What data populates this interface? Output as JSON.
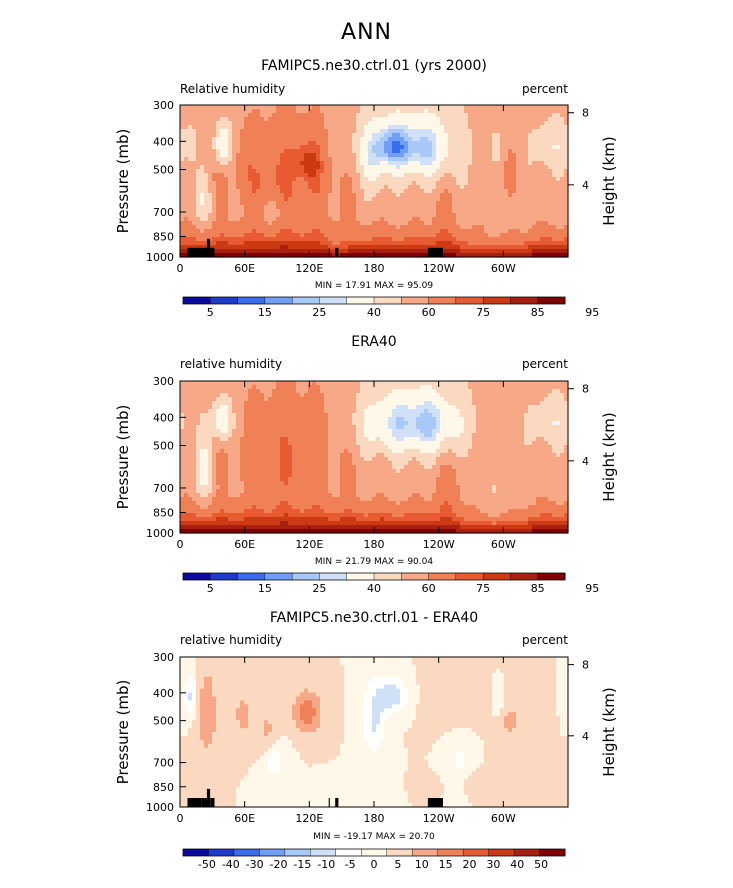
{
  "figure": {
    "supertitle": "ANN",
    "colors": {
      "rh": [
        "#0a0aa0",
        "#1e3ccc",
        "#3a6cf0",
        "#6e9ef6",
        "#a8c8f7",
        "#d0e0f6",
        "#fff8e8",
        "#fbd8c0",
        "#f7a886",
        "#f08056",
        "#e85a32",
        "#cc3a14",
        "#a82010",
        "#800000"
      ],
      "diff": [
        "#0a0aa0",
        "#1e3ccc",
        "#3a6cf0",
        "#6e9ef6",
        "#a8c8f7",
        "#d0e0f6",
        "#ffffff",
        "#fff8e8",
        "#fbd8c0",
        "#f7a886",
        "#f08056",
        "#e85a32",
        "#cc3a14",
        "#a82010",
        "#800000"
      ]
    }
  },
  "chart_data": [
    {
      "type": "heatmap",
      "title": "FAMIPC5.ne30.ctrl.01 (yrs 2000)",
      "left_string": "Relative humidity",
      "right_string": "percent",
      "xlabel": "",
      "ylabel": "Pressure (mb)",
      "ylabel_right": "Height (km)",
      "x_ticklabels": [
        "0",
        "60E",
        "120E",
        "180",
        "120W",
        "60W"
      ],
      "x_ticks_deg": [
        0,
        60,
        120,
        180,
        240,
        300
      ],
      "xlim": [
        0,
        360
      ],
      "y_ticklabels": [
        "300",
        "400",
        "500",
        "700",
        "850",
        "1000"
      ],
      "y_ticks": [
        300,
        400,
        500,
        700,
        850,
        1000
      ],
      "ylim": [
        300,
        1000
      ],
      "yscale": "log",
      "height_ticklabels": [
        "8",
        "4"
      ],
      "height_ticks_km": [
        8,
        4
      ],
      "min_max_text": "MIN =   17.91   MAX =   95.09",
      "colorbar": [
        "5",
        "15",
        "25",
        "40",
        "60",
        "75",
        "85",
        "95"
      ],
      "colorbar_levels": [
        5,
        10,
        15,
        20,
        25,
        30,
        40,
        50,
        60,
        70,
        75,
        80,
        85,
        90,
        95
      ],
      "palette": "rh",
      "field": "model",
      "terrain": [
        [
          7,
          20,
          930
        ],
        [
          20,
          25,
          930
        ],
        [
          25,
          28,
          865
        ],
        [
          28,
          32,
          930
        ],
        [
          138,
          139,
          930
        ],
        [
          144,
          147,
          930
        ],
        [
          230,
          244,
          930
        ]
      ]
    },
    {
      "type": "heatmap",
      "title": "ERA40",
      "left_string": "relative humidity",
      "right_string": "percent",
      "xlabel": "",
      "ylabel": "Pressure (mb)",
      "ylabel_right": "Height (km)",
      "x_ticklabels": [
        "0",
        "60E",
        "120E",
        "180",
        "120W",
        "60W"
      ],
      "x_ticks_deg": [
        0,
        60,
        120,
        180,
        240,
        300
      ],
      "xlim": [
        0,
        360
      ],
      "y_ticklabels": [
        "300",
        "400",
        "500",
        "700",
        "850",
        "1000"
      ],
      "y_ticks": [
        300,
        400,
        500,
        700,
        850,
        1000
      ],
      "ylim": [
        300,
        1000
      ],
      "yscale": "log",
      "height_ticklabels": [
        "8",
        "4"
      ],
      "height_ticks_km": [
        8,
        4
      ],
      "min_max_text": "MIN =   21.79   MAX =   90.04",
      "colorbar": [
        "5",
        "15",
        "25",
        "40",
        "60",
        "75",
        "85",
        "95"
      ],
      "colorbar_levels": [
        5,
        10,
        15,
        20,
        25,
        30,
        40,
        50,
        60,
        70,
        75,
        80,
        85,
        90,
        95
      ],
      "palette": "rh",
      "field": "obs",
      "terrain": []
    },
    {
      "type": "heatmap",
      "title": "FAMIPC5.ne30.ctrl.01 - ERA40",
      "left_string": "relative humidity",
      "right_string": "percent",
      "xlabel": "",
      "ylabel": "Pressure (mb)",
      "ylabel_right": "Height (km)",
      "x_ticklabels": [
        "0",
        "60E",
        "120E",
        "180",
        "120W",
        "60W"
      ],
      "x_ticks_deg": [
        0,
        60,
        120,
        180,
        240,
        300
      ],
      "xlim": [
        0,
        360
      ],
      "y_ticklabels": [
        "300",
        "400",
        "500",
        "700",
        "850",
        "1000"
      ],
      "y_ticks": [
        300,
        400,
        500,
        700,
        850,
        1000
      ],
      "ylim": [
        300,
        1000
      ],
      "yscale": "log",
      "height_ticklabels": [
        "8",
        "4"
      ],
      "height_ticks_km": [
        8,
        4
      ],
      "min_max_text": "MIN = -19.17   MAX =   20.70",
      "colorbar": [
        "-50",
        "-40",
        "-30",
        "-20",
        "-15",
        "-10",
        "-5",
        "0",
        "5",
        "10",
        "15",
        "20",
        "30",
        "40",
        "50"
      ],
      "colorbar_levels": [
        -50,
        -40,
        -30,
        -20,
        -15,
        -10,
        -5,
        0,
        5,
        10,
        15,
        20,
        30,
        40,
        50
      ],
      "palette": "diff",
      "field": "diff",
      "terrain": [
        [
          7,
          20,
          930
        ],
        [
          20,
          25,
          930
        ],
        [
          25,
          28,
          865
        ],
        [
          28,
          32,
          930
        ],
        [
          138,
          139,
          930
        ],
        [
          144,
          147,
          930
        ],
        [
          230,
          244,
          930
        ]
      ]
    }
  ]
}
